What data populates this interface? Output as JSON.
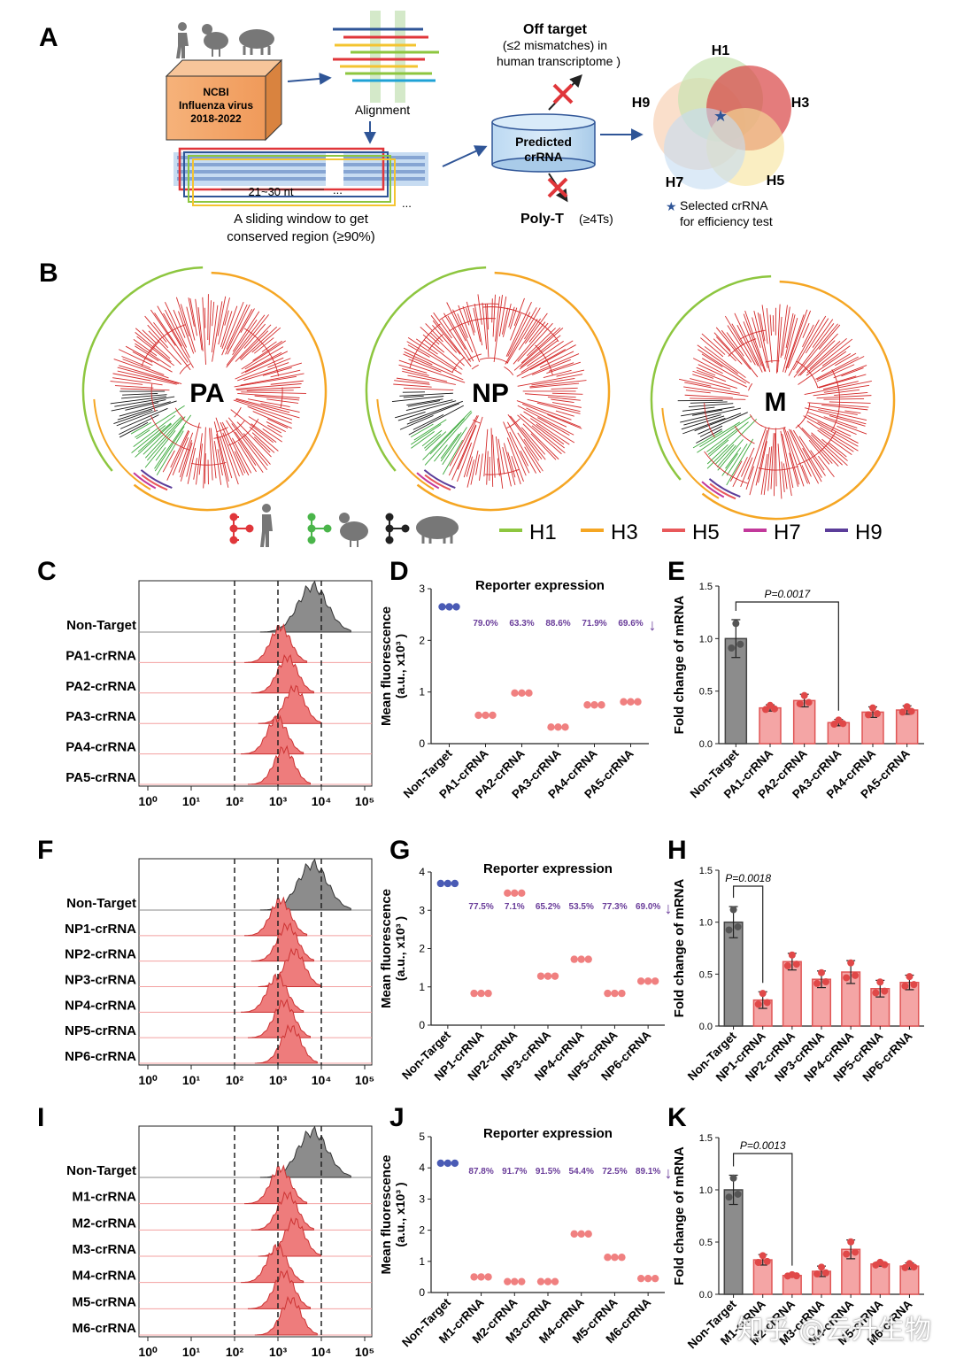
{
  "panel_letters": [
    "A",
    "B",
    "C",
    "D",
    "E",
    "F",
    "G",
    "H",
    "I",
    "J",
    "K"
  ],
  "panelA": {
    "db_line1": "NCBI",
    "db_line2": "Influenza virus",
    "db_line3": "2018-2022",
    "alignment_label": "Alignment",
    "window_size_label": "21~30 nt",
    "dots": "...",
    "sliding_line1": "A sliding window to get",
    "sliding_line2": "conserved region  (≥90%)",
    "predicted_line1": "Predicted",
    "predicted_line2": "crRNA",
    "offtarget_title": "Off target",
    "offtarget_line2": "(≤2 mismatches) in",
    "offtarget_line3": "human transcriptome )",
    "polyt_label": "Poly-T",
    "polyt_criterion": "(≥4Ts)",
    "venn_labels": [
      "H1",
      "H3",
      "H5",
      "H7",
      "H9"
    ],
    "selected_line1": "Selected crRNA",
    "selected_line2": "for efficiency test"
  },
  "panelB": {
    "trees": [
      "PA",
      "NP",
      "M"
    ],
    "legend_hosts": [
      "human",
      "chicken",
      "pig"
    ],
    "legend_subtypes": [
      {
        "label": "H1",
        "color": "#8dc63f"
      },
      {
        "label": "H3",
        "color": "#f5a623"
      },
      {
        "label": "H5",
        "color": "#e8585a"
      },
      {
        "label": "H7",
        "color": "#c2399b"
      },
      {
        "label": "H9",
        "color": "#5b3d9a"
      }
    ]
  },
  "flow_axis_ticks": [
    "10⁰",
    "10¹",
    "10²",
    "10³",
    "10⁴",
    "10⁵"
  ],
  "histograms": [
    {
      "rows": [
        "Non-Target",
        "PA1-crRNA",
        "PA2-crRNA",
        "PA3-crRNA",
        "PA4-crRNA",
        "PA5-crRNA"
      ]
    },
    {
      "rows": [
        "Non-Target",
        "NP1-crRNA",
        "NP2-crRNA",
        "NP3-crRNA",
        "NP4-crRNA",
        "NP5-crRNA",
        "NP6-crRNA"
      ]
    },
    {
      "rows": [
        "Non-Target",
        "M1-crRNA",
        "M2-crRNA",
        "M3-crRNA",
        "M4-crRNA",
        "M5-crRNA",
        "M6-crRNA"
      ]
    }
  ],
  "reporter_title": "Reporter expression",
  "reporter_ylabel1": "Mean fluorescence",
  "reporter_ylabel2": "(a.u., x10³ )",
  "fold_ylabel": "Fold change of mRNA",
  "chart_data": [
    {
      "panel": "D",
      "type": "scatter",
      "title": "Reporter expression",
      "ylabel": "Mean fluorescence (a.u., x10³)",
      "ylim": [
        0,
        3
      ],
      "yticks": [
        "0",
        "1",
        "2",
        "3"
      ],
      "categories": [
        "Non-Target",
        "PA1-crRNA",
        "PA2-crRNA",
        "PA3-crRNA",
        "PA4-crRNA",
        "PA5-crRNA"
      ],
      "values": [
        2.65,
        0.55,
        0.98,
        0.32,
        0.75,
        0.81
      ],
      "reductions": [
        "79.0%",
        "63.3%",
        "88.6%",
        "71.9%",
        "69.6%"
      ]
    },
    {
      "panel": "E",
      "type": "bar",
      "ylabel": "Fold change of mRNA",
      "ylim": [
        0,
        1.5
      ],
      "yticks": [
        "0.0",
        "0.5",
        "1.0",
        "1.5"
      ],
      "categories": [
        "Non-Target",
        "PA1-crRNA",
        "PA2-crRNA",
        "PA3-crRNA",
        "PA4-crRNA",
        "PA5-crRNA"
      ],
      "values": [
        1.0,
        0.34,
        0.41,
        0.2,
        0.3,
        0.32
      ],
      "errors": [
        0.18,
        0.03,
        0.06,
        0.03,
        0.05,
        0.04
      ],
      "pvalue": "P=0.0017",
      "compare": [
        0,
        3
      ]
    },
    {
      "panel": "G",
      "type": "scatter",
      "title": "Reporter expression",
      "ylabel": "Mean fluorescence (a.u., x10³)",
      "ylim": [
        0,
        4
      ],
      "yticks": [
        "0",
        "1",
        "2",
        "3",
        "4"
      ],
      "categories": [
        "Non-Target",
        "NP1-crRNA",
        "NP2-crRNA",
        "NP3-crRNA",
        "NP4-crRNA",
        "NP5-crRNA",
        "NP6-crRNA"
      ],
      "values": [
        3.7,
        0.83,
        3.45,
        1.28,
        1.72,
        0.83,
        1.15
      ],
      "reductions": [
        "77.5%",
        "7.1%",
        "65.2%",
        "53.5%",
        "77.3%",
        "69.0%"
      ]
    },
    {
      "panel": "H",
      "type": "bar",
      "ylabel": "Fold change of mRNA",
      "ylim": [
        0,
        1.5
      ],
      "yticks": [
        "0.0",
        "0.5",
        "1.0",
        "1.5"
      ],
      "categories": [
        "Non-Target",
        "NP1-crRNA",
        "NP2-crRNA",
        "NP3-crRNA",
        "NP4-crRNA",
        "NP5-crRNA",
        "NP6-crRNA"
      ],
      "values": [
        1.0,
        0.25,
        0.62,
        0.45,
        0.52,
        0.36,
        0.42
      ],
      "errors": [
        0.15,
        0.08,
        0.08,
        0.08,
        0.11,
        0.08,
        0.07
      ],
      "pvalue": "P=0.0018",
      "compare": [
        0,
        1
      ]
    },
    {
      "panel": "J",
      "type": "scatter",
      "title": "Reporter expression",
      "ylabel": "Mean fluorescence (a.u., x10³)",
      "ylim": [
        0,
        5
      ],
      "yticks": [
        "0",
        "1",
        "2",
        "3",
        "4",
        "5"
      ],
      "categories": [
        "Non-Target",
        "M1-crRNA",
        "M2-crRNA",
        "M3-crRNA",
        "M4-crRNA",
        "M5-crRNA",
        "M6-crRNA"
      ],
      "values": [
        4.15,
        0.5,
        0.35,
        0.35,
        1.88,
        1.13,
        0.45
      ],
      "reductions": [
        "87.8%",
        "91.7%",
        "91.5%",
        "54.4%",
        "72.5%",
        "89.1%"
      ]
    },
    {
      "panel": "K",
      "type": "bar",
      "ylabel": "Fold change of mRNA",
      "ylim": [
        0,
        1.5
      ],
      "yticks": [
        "0.0",
        "0.5",
        "1.0",
        "1.5"
      ],
      "categories": [
        "Non-Target",
        "M1-crRNA",
        "M2-crRNA",
        "M3-crRNA",
        "M4-crRNA",
        "M5-crRNA",
        "M6-crRNA"
      ],
      "values": [
        1.0,
        0.33,
        0.18,
        0.22,
        0.43,
        0.29,
        0.27
      ],
      "errors": [
        0.14,
        0.05,
        0.01,
        0.05,
        0.09,
        0.02,
        0.03
      ],
      "pvalue": "P=0.0013",
      "compare": [
        0,
        2
      ]
    }
  ],
  "watermark": "知乎 @云升生物"
}
